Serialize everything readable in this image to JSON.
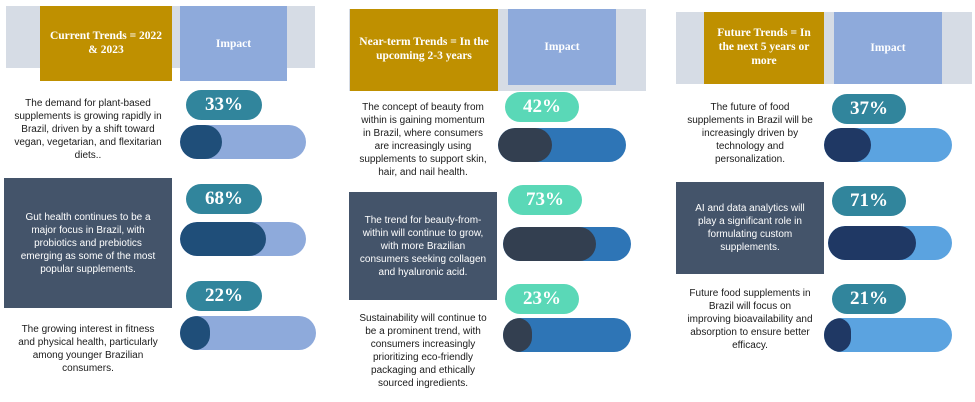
{
  "panels": [
    {
      "header": "Current Trends = 2022 & 2023",
      "impact_label": "Impact",
      "pill_color": "#31859c",
      "bar_track": "#8eaadb",
      "bar_fill": "#1f4e79",
      "rows": [
        {
          "text": "The demand for plant-based supplements is growing rapidly in Brazil, driven by a shift toward vegan, vegetarian, and flexitarian diets..",
          "value": 33,
          "label": "33%",
          "dark": false
        },
        {
          "text": "Gut health continues to be a major focus in Brazil, with probiotics and prebiotics emerging as some of the most popular supplements.",
          "value": 68,
          "label": "68%",
          "dark": true
        },
        {
          "text": "The growing interest in fitness and physical health, particularly among younger Brazilian consumers.",
          "value": 22,
          "label": "22%",
          "dark": false
        }
      ]
    },
    {
      "header": "Near-term Trends = In the upcoming 2-3 years",
      "impact_label": "Impact",
      "pill_color": "#5ad8b7",
      "bar_track": "#2e75b6",
      "bar_fill": "#333f50",
      "rows": [
        {
          "text": "The concept of beauty from within is gaining momentum in Brazil, where consumers are increasingly using supplements to support skin, hair, and nail health.",
          "value": 42,
          "label": "42%",
          "dark": false
        },
        {
          "text": "The trend for beauty-from-within will continue to grow, with more Brazilian consumers seeking collagen and hyaluronic acid.",
          "value": 73,
          "label": "73%",
          "dark": true
        },
        {
          "text": "Sustainability will continue to be a prominent trend, with consumers increasingly prioritizing eco-friendly packaging and ethically sourced ingredients.",
          "value": 23,
          "label": "23%",
          "dark": false
        }
      ]
    },
    {
      "header": "Future Trends = In the next 5 years or more",
      "impact_label": "Impact",
      "pill_color": "#31859c",
      "bar_track": "#5ba3e0",
      "bar_fill": "#1f3864",
      "rows": [
        {
          "text": "The future of food supplements in Brazil will be increasingly driven by technology and personalization.",
          "value": 37,
          "label": "37%",
          "dark": false
        },
        {
          "text": "AI and data analytics will play a significant role in formulating custom supplements.",
          "value": 71,
          "label": "71%",
          "dark": true
        },
        {
          "text": "Future food supplements in Brazil will focus on improving bioavailability and absorption to ensure better efficacy.",
          "value": 21,
          "label": "21%",
          "dark": false
        }
      ]
    }
  ]
}
